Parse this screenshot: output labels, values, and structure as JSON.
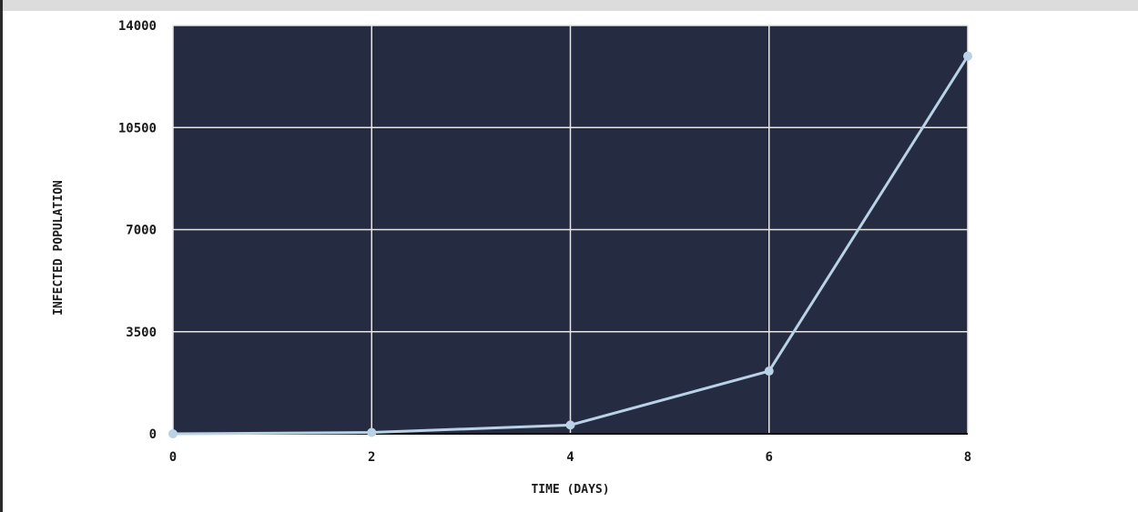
{
  "chart_data": {
    "type": "line",
    "x": [
      0,
      2,
      4,
      6,
      8
    ],
    "series": [
      {
        "values": [
          0,
          45,
          300,
          2150,
          12950
        ]
      }
    ],
    "xlabel": "TIME (DAYS)",
    "ylabel": "INFECTED POPULATION",
    "xlim": [
      0,
      8
    ],
    "ylim": [
      0,
      14000
    ],
    "xticks": [
      "0",
      "2",
      "4",
      "6",
      "8"
    ],
    "yticks": [
      "0",
      "3500",
      "7000",
      "10500",
      "14000"
    ],
    "grid": true,
    "colors": {
      "plot_background": "#252b40",
      "line": "#b9d2e6",
      "grid": "#e6e6e6",
      "axis": "#111111",
      "text": "#1a1a1a"
    }
  }
}
